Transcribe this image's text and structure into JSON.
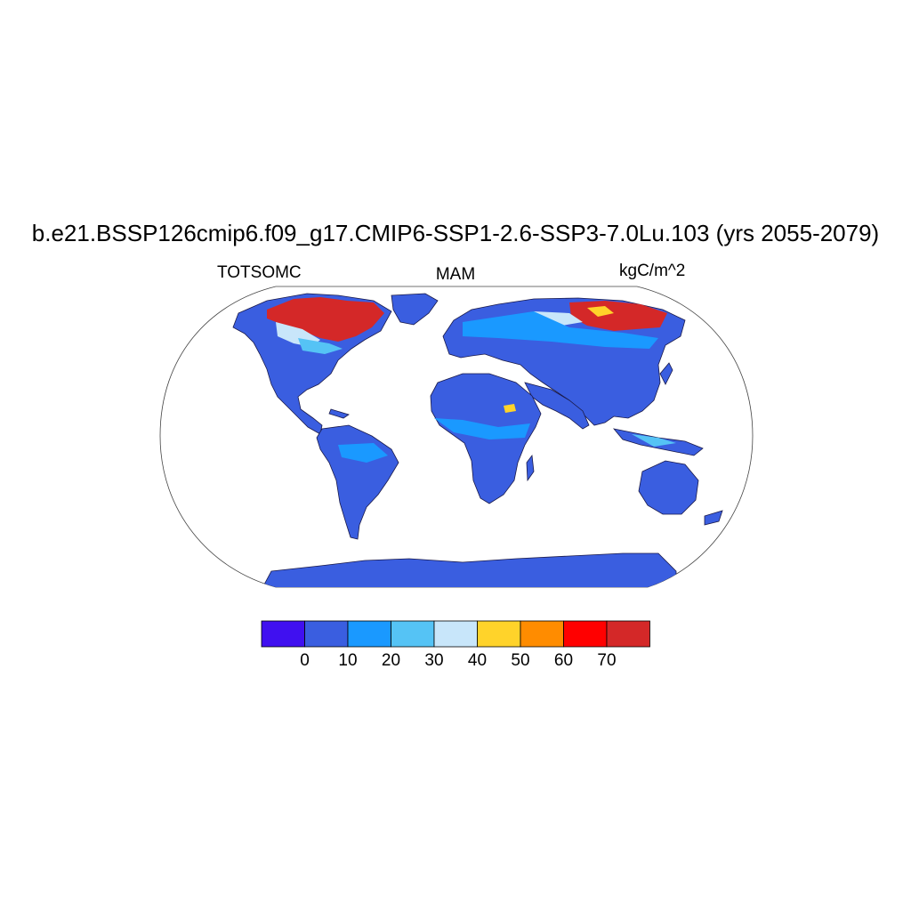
{
  "title": "b.e21.BSSP126cmip6.f09_g17.CMIP6-SSP1-2.6-SSP3-7.0Lu.103 (yrs 2055-2079)",
  "left_label": "TOTSOMC",
  "center_label": "MAM",
  "right_label": "kgC/m^2",
  "colorbar": {
    "colors": [
      "#4010f0",
      "#3a5ee0",
      "#1a99ff",
      "#55c3f5",
      "#c8e6fa",
      "#ffd32a",
      "#ff8c00",
      "#ff0000",
      "#d42828"
    ],
    "labels": [
      "0",
      "10",
      "20",
      "30",
      "40",
      "50",
      "60",
      "70"
    ]
  }
}
